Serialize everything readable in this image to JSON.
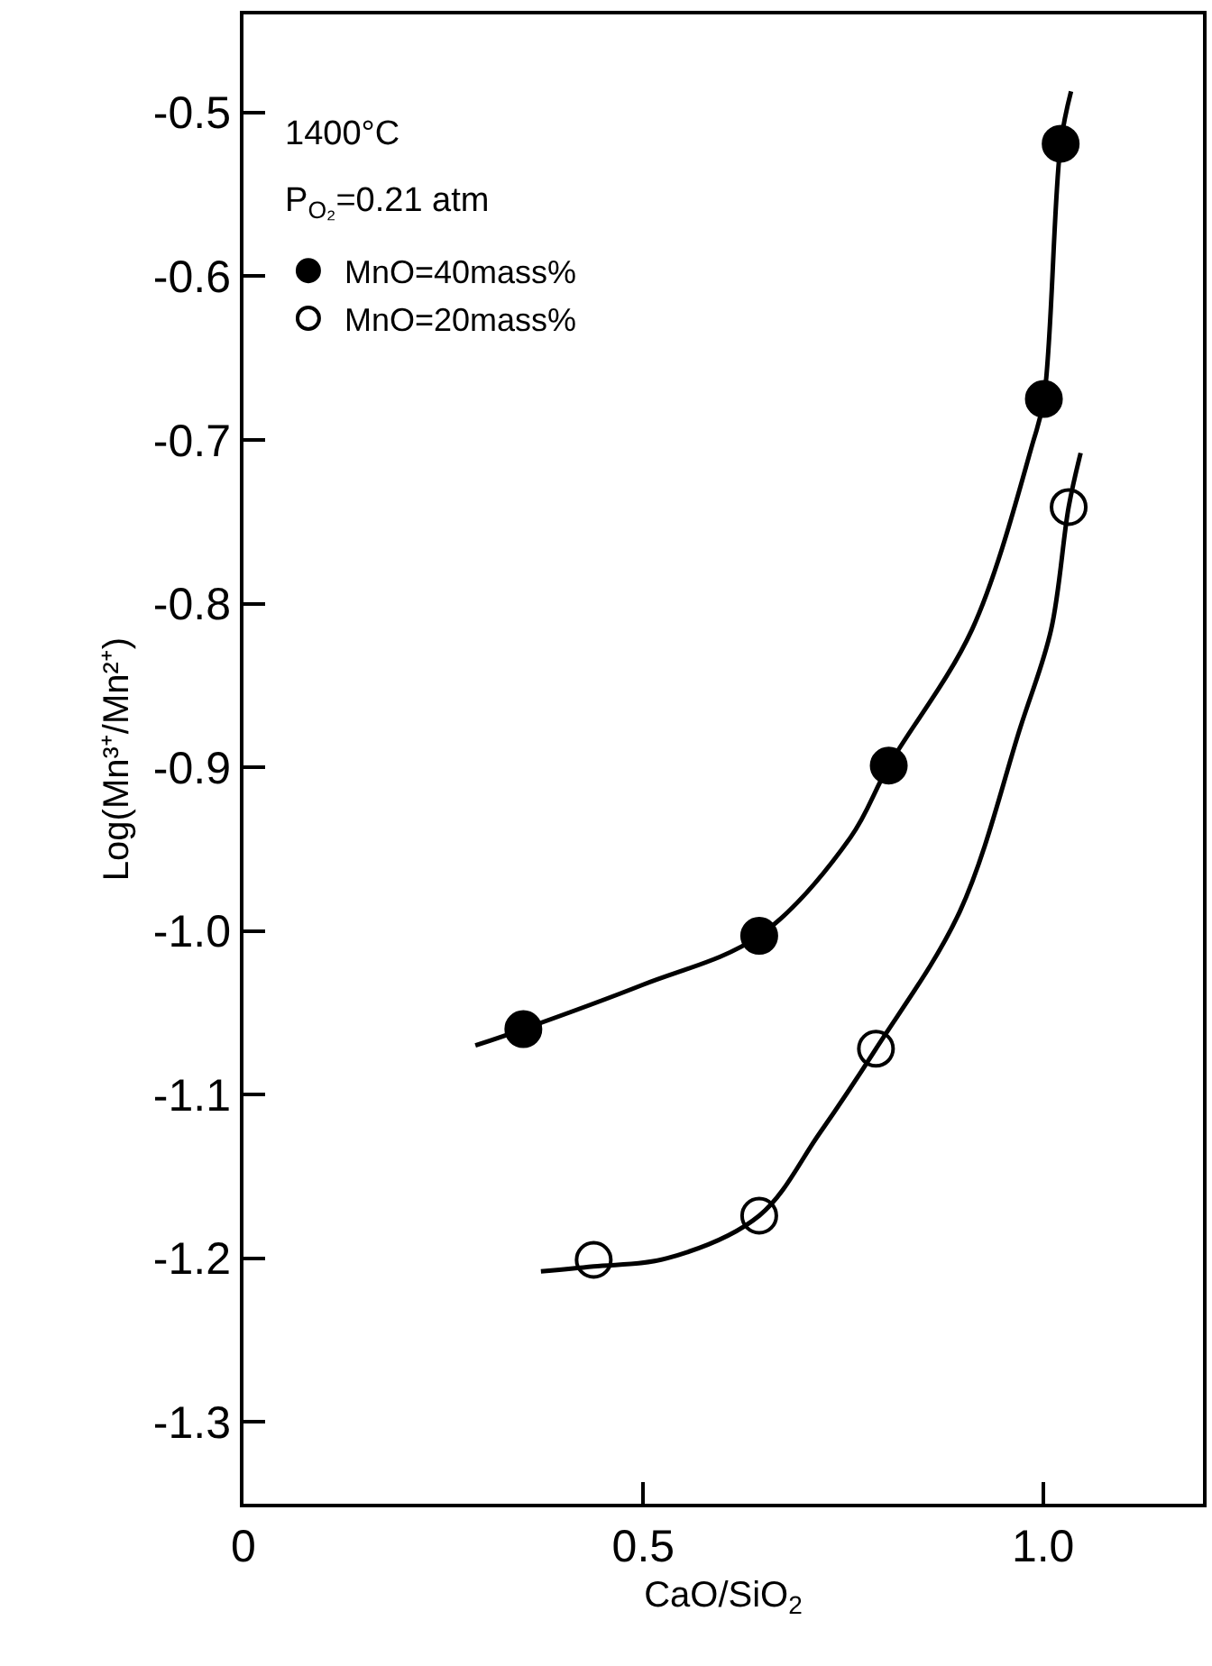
{
  "chart_data": {
    "type": "scatter",
    "xlabel": "CaO/SiO$_{2}$",
    "ylabel": "Log(Mn³⁺/Mn²⁺)",
    "annotations": [
      "1400°C",
      "P$_{O₂}$=0.21 atm"
    ],
    "xlim": [
      0,
      1.2
    ],
    "xticks": [
      0,
      0.5,
      {
        "value": 1.0,
        "label": "1.0"
      }
    ],
    "ylim": [
      -1.35,
      -0.44
    ],
    "yticks": [
      -0.5,
      -0.6,
      -0.7,
      -0.8,
      -0.9,
      {
        "value": -1.0,
        "label": "-1.0"
      },
      -1.1,
      -1.2,
      -1.3
    ],
    "legend": "top left",
    "marker": "circle",
    "series": [
      {
        "name": "MnO=40mass%",
        "color": "#000000",
        "x": [
          0.35,
          0.645,
          0.807,
          1.001,
          1.022
        ],
        "values": [
          -1.06,
          -1.003,
          -0.899,
          -0.675,
          -0.519
        ]
      },
      {
        "name": "MnO=20mass%",
        "color": "#ffffff",
        "x": [
          0.438,
          0.645,
          0.791,
          1.032
        ],
        "values": [
          -1.201,
          -1.174,
          -1.072,
          -0.741
        ]
      },
      {
        "type": "line",
        "marker": "none",
        "color": "#000000",
        "x": [
          0.29,
          0.35,
          0.499,
          0.645,
          0.759,
          0.807,
          0.911,
          0.987,
          1.001,
          1.022,
          1.035
        ],
        "values": [
          -1.07,
          -1.06,
          -1.033,
          -1.003,
          -0.943,
          -0.899,
          -0.816,
          -0.702,
          -0.675,
          -0.519,
          -0.487
        ]
      },
      {
        "type": "line",
        "marker": "none",
        "color": "#000000",
        "x": [
          0.372,
          0.438,
          0.53,
          0.645,
          0.72,
          0.791,
          0.896,
          0.972,
          1.01,
          1.032,
          1.047
        ],
        "values": [
          -1.208,
          -1.205,
          -1.2,
          -1.174,
          -1.124,
          -1.072,
          -0.988,
          -0.875,
          -0.816,
          -0.741,
          -0.708
        ]
      }
    ]
  }
}
